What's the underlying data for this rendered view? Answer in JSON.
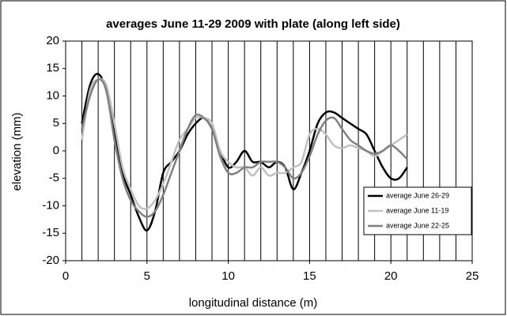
{
  "chart_data": {
    "type": "line",
    "title": "averages June 11-29 2009 with plate (along left side)",
    "xlabel": "longitudinal distance (m)",
    "ylabel": "elevation (mm)",
    "x": [
      1,
      1.5,
      2,
      2.5,
      3,
      3.5,
      4,
      4.5,
      5,
      5.5,
      6,
      6.5,
      7,
      7.5,
      8,
      8.5,
      9,
      9.5,
      10,
      10.5,
      11,
      11.5,
      12,
      12.5,
      13,
      13.5,
      14,
      14.5,
      15,
      15.5,
      16,
      16.5,
      17,
      17.5,
      18,
      18.5,
      19,
      19.5,
      20,
      20.5,
      21
    ],
    "series": [
      {
        "name": "average June 26-29",
        "color": "#000000",
        "values": [
          5,
          12,
          14,
          11,
          3,
          -4,
          -8,
          -12,
          -14.5,
          -11,
          -4,
          -2,
          0,
          3,
          5,
          6,
          4,
          0,
          -3,
          -2,
          0,
          -2,
          -2,
          -3,
          -2,
          -3,
          -7,
          -4,
          0,
          5,
          7,
          7,
          6,
          5,
          4,
          3,
          0,
          -3,
          -5,
          -5,
          -3
        ]
      },
      {
        "name": "average June 11-19",
        "color": "#c0c0c0",
        "values": [
          2,
          11,
          13,
          12,
          5,
          -3,
          -7,
          -10,
          -10.5,
          -9,
          -6,
          -2,
          2,
          4,
          6,
          6,
          5,
          0,
          -2,
          -3,
          -3,
          -4.5,
          -3,
          -4.5,
          -4,
          -4,
          -3,
          -2,
          3,
          4,
          3,
          1,
          0.5,
          1,
          0.5,
          0,
          -1,
          0,
          1,
          2,
          3
        ]
      },
      {
        "name": "average June 22-25",
        "color": "#808080",
        "values": [
          4,
          10,
          13,
          11,
          2,
          -5,
          -9,
          -11,
          -12,
          -11,
          -8,
          -4,
          0,
          4,
          6.5,
          6,
          4,
          -1,
          -4,
          -4,
          -3,
          -3,
          -2,
          -2,
          -2,
          -3,
          -5,
          -4,
          -1,
          3,
          5.5,
          6,
          4,
          2,
          1,
          0,
          -0.5,
          0,
          1,
          0,
          -1.5
        ]
      }
    ],
    "xlim": [
      0,
      25
    ],
    "xticks": [
      0,
      5,
      10,
      15,
      20,
      25
    ],
    "ylim": [
      -20,
      20
    ],
    "yticks": [
      -20,
      -15,
      -10,
      -5,
      0,
      5,
      10,
      15,
      20
    ],
    "xgrid": [
      1,
      2,
      3,
      4,
      5,
      6,
      7,
      8,
      9,
      10,
      11,
      12,
      13,
      14,
      15,
      16,
      17,
      18,
      19,
      20,
      21,
      22,
      23,
      24
    ],
    "legend": "lower right"
  }
}
